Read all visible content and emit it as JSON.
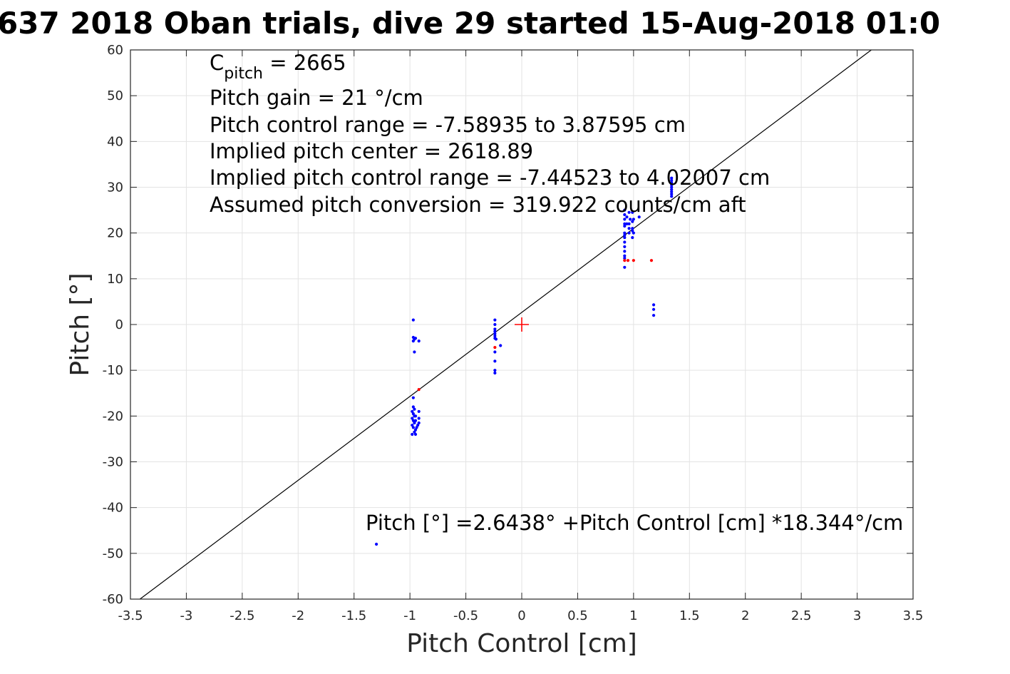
{
  "chart_data": {
    "type": "scatter",
    "title": "637 2018 Oban trials, dive 29 started 15-Aug-2018 01:0",
    "xlabel": "Pitch Control [cm]",
    "ylabel": "Pitch [°]",
    "xlim": [
      -3.5,
      3.5
    ],
    "ylim": [
      -60,
      60
    ],
    "x_ticks": [
      -3.5,
      -3,
      -2.5,
      -2,
      -1.5,
      -1,
      -0.5,
      0,
      0.5,
      1,
      1.5,
      2,
      2.5,
      3,
      3.5
    ],
    "y_ticks": [
      60,
      50,
      40,
      30,
      20,
      10,
      0,
      -10,
      -20,
      -30,
      -40,
      -50,
      -60
    ],
    "x_tick_labels": [
      "-3.5",
      "-3",
      "-2.5",
      "-2",
      "-1.5",
      "-1",
      "-0.5",
      "0",
      "0.5",
      "1",
      "1.5",
      "2",
      "2.5",
      "3",
      "3.5"
    ],
    "y_tick_labels": [
      "60",
      "50",
      "40",
      "30",
      "20",
      "10",
      "0",
      "-10",
      "-20",
      "-30",
      "-40",
      "-50",
      "-60"
    ],
    "grid": true,
    "annotations": {
      "cpitch_label": "C",
      "cpitch_sub": "pitch",
      "cpitch_value": " = 2665",
      "pitch_gain": "Pitch gain = 21 °/cm",
      "control_range": "Pitch control range = -7.58935 to 3.87595 cm",
      "implied_center": "Implied pitch center = 2618.89",
      "implied_range": "Implied pitch control range = -7.44523 to 4.02007 cm",
      "assumed_conversion": "Assumed pitch conversion = 319.922 counts/cm aft",
      "fit_equation": "Pitch [°] =2.6438° +Pitch Control [cm] *18.344°/cm"
    },
    "fit_line": {
      "intercept": 2.6438,
      "slope": 18.344,
      "color": "#000000"
    },
    "center_marker": {
      "x": 0,
      "y": 0,
      "color": "#ff0000"
    },
    "series": [
      {
        "color": "#0000ff",
        "points": [
          [
            -0.97,
            1.0
          ],
          [
            -0.97,
            -2.8
          ],
          [
            -0.96,
            -3.2
          ],
          [
            -0.97,
            -3.6
          ],
          [
            -0.95,
            -3.0
          ],
          [
            -0.92,
            -3.6
          ],
          [
            -0.96,
            -6.0
          ],
          [
            -0.97,
            -16.0
          ],
          [
            -0.97,
            -18.0
          ],
          [
            -0.96,
            -18.5
          ],
          [
            -0.98,
            -19.0
          ],
          [
            -0.97,
            -19.5
          ],
          [
            -0.96,
            -20.0
          ],
          [
            -0.98,
            -20.5
          ],
          [
            -0.97,
            -21.0
          ],
          [
            -0.96,
            -21.5
          ],
          [
            -0.98,
            -22.0
          ],
          [
            -0.97,
            -22.5
          ],
          [
            -0.95,
            -23.0
          ],
          [
            -0.96,
            -23.5
          ],
          [
            -0.98,
            -24.0
          ],
          [
            -0.95,
            -24.0
          ],
          [
            -0.92,
            -19.0
          ],
          [
            -0.92,
            -20.5
          ],
          [
            -0.92,
            -21.5
          ],
          [
            -0.93,
            -22.0
          ],
          [
            -0.95,
            -20.0
          ],
          [
            -0.95,
            -21.0
          ],
          [
            -0.94,
            -22.5
          ],
          [
            -0.24,
            1.0
          ],
          [
            -0.24,
            0.0
          ],
          [
            -0.24,
            -1.0
          ],
          [
            -0.24,
            -1.5
          ],
          [
            -0.24,
            -2.0
          ],
          [
            -0.24,
            -2.5
          ],
          [
            -0.24,
            -3.0
          ],
          [
            -0.23,
            -3.2
          ],
          [
            -0.24,
            -6.0
          ],
          [
            -0.24,
            -8.0
          ],
          [
            -0.24,
            -10.0
          ],
          [
            -0.24,
            -10.6
          ],
          [
            -0.19,
            -4.6
          ],
          [
            0.92,
            12.5
          ],
          [
            0.92,
            14.5
          ],
          [
            0.92,
            15.0
          ],
          [
            0.92,
            16.0
          ],
          [
            0.92,
            17.0
          ],
          [
            0.92,
            18.0
          ],
          [
            0.92,
            19.0
          ],
          [
            0.92,
            19.5
          ],
          [
            0.92,
            20.0
          ],
          [
            0.92,
            21.5
          ],
          [
            0.92,
            22.0
          ],
          [
            0.92,
            23.0
          ],
          [
            0.92,
            24.0
          ],
          [
            0.92,
            25.0
          ],
          [
            0.94,
            22.0
          ],
          [
            0.94,
            23.5
          ],
          [
            0.96,
            20.0
          ],
          [
            0.96,
            21.0
          ],
          [
            0.96,
            22.0
          ],
          [
            0.96,
            24.5
          ],
          [
            0.97,
            23.0
          ],
          [
            0.99,
            19.0
          ],
          [
            0.99,
            20.5
          ],
          [
            0.99,
            21.0
          ],
          [
            0.99,
            22.5
          ],
          [
            0.99,
            24.5
          ],
          [
            1.0,
            20.0
          ],
          [
            1.0,
            23.0
          ],
          [
            1.05,
            23.5
          ],
          [
            1.18,
            2.0
          ],
          [
            1.18,
            3.3
          ],
          [
            1.18,
            4.3
          ],
          [
            1.34,
            28.0
          ],
          [
            1.34,
            28.5
          ],
          [
            1.34,
            29.0
          ],
          [
            1.34,
            29.5
          ],
          [
            1.34,
            30.0
          ],
          [
            1.34,
            30.5
          ],
          [
            1.34,
            31.0
          ],
          [
            1.34,
            31.5
          ],
          [
            1.34,
            32.0
          ],
          [
            -1.3,
            -48.0
          ]
        ]
      },
      {
        "color": "#ff0000",
        "points": [
          [
            -0.92,
            -14.2
          ],
          [
            -0.24,
            -5.0
          ],
          [
            0.92,
            14.0
          ],
          [
            0.95,
            14.0
          ],
          [
            1.0,
            14.0
          ],
          [
            1.16,
            14.0
          ]
        ]
      }
    ]
  }
}
